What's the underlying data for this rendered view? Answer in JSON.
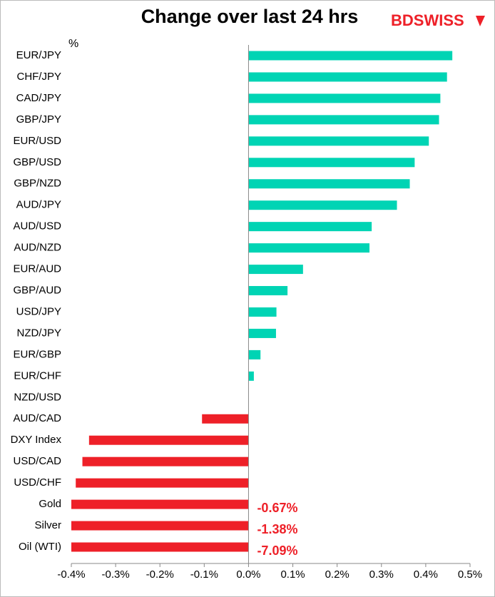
{
  "chart_data": {
    "type": "hbar",
    "title": "Change over last 24 hrs",
    "logo": "BDSWISS",
    "unit_label": "%",
    "categories": [
      "EUR/JPY",
      "CHF/JPY",
      "CAD/JPY",
      "GBP/JPY",
      "EUR/USD",
      "GBP/USD",
      "GBP/NZD",
      "AUD/JPY",
      "AUD/USD",
      "AUD/NZD",
      "EUR/AUD",
      "GBP/AUD",
      "USD/JPY",
      "NZD/JPY",
      "EUR/GBP",
      "EUR/CHF",
      "NZD/USD",
      "AUD/CAD",
      "DXY Index",
      "USD/CAD",
      "USD/CHF",
      "Gold",
      "Silver",
      "Oil (WTI)"
    ],
    "values": [
      0.46,
      0.448,
      0.433,
      0.43,
      0.407,
      0.375,
      0.364,
      0.335,
      0.278,
      0.273,
      0.123,
      0.088,
      0.063,
      0.062,
      0.027,
      0.012,
      0.0,
      -0.105,
      -0.36,
      -0.375,
      -0.39,
      -0.67,
      -1.38,
      -7.09
    ],
    "value_labels": [
      null,
      null,
      null,
      null,
      null,
      null,
      null,
      null,
      null,
      null,
      null,
      null,
      null,
      null,
      null,
      null,
      null,
      null,
      null,
      null,
      null,
      "-0.67%",
      "-1.38%",
      "-7.09%"
    ],
    "colors": {
      "positive": "#00d4b4",
      "negative": "#ee2028"
    },
    "xlim": [
      -0.4,
      0.5
    ],
    "xticks": [
      {
        "value": -0.4,
        "label": "-0.4%"
      },
      {
        "value": -0.3,
        "label": "-0.3%"
      },
      {
        "value": -0.2,
        "label": "-0.2%"
      },
      {
        "value": -0.1,
        "label": "-0.1%"
      },
      {
        "value": 0,
        "label": "0.0%"
      },
      {
        "value": 0.1,
        "label": "0.1%"
      },
      {
        "value": 0.2,
        "label": "0.2%"
      },
      {
        "value": 0.3,
        "label": "0.3%"
      },
      {
        "value": 0.4,
        "label": "0.4%"
      },
      {
        "value": 0.5,
        "label": "0.5%"
      }
    ],
    "grid": false
  }
}
